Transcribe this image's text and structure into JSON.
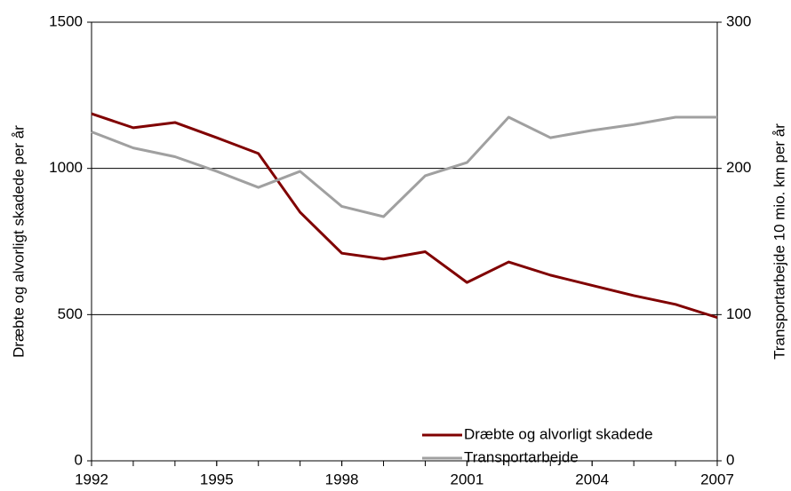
{
  "chart_data": {
    "type": "line",
    "x": [
      1992,
      1993,
      1994,
      1995,
      1996,
      1997,
      1998,
      1999,
      2000,
      2001,
      2002,
      2003,
      2004,
      2005,
      2006,
      2007
    ],
    "xlim": [
      1992,
      2007
    ],
    "xticks": [
      1992,
      1995,
      1998,
      2001,
      2004,
      2007
    ],
    "ylim": [
      0,
      1500
    ],
    "yticks": [
      0,
      500,
      1000,
      1500
    ],
    "y2lim": [
      0,
      300
    ],
    "y2ticks": [
      0,
      100,
      200,
      300
    ],
    "ylabel": "Dræbte og alvorligt skadede per år",
    "y2label": "Transportarbejde 10 mio. km per år",
    "grid": true,
    "legend": "lower right",
    "series": [
      {
        "name": "Dræbte og alvorligt skadede",
        "color": "#800000",
        "values": [
          1187,
          1139,
          1157,
          1105,
          1051,
          850,
          710,
          690,
          715,
          610,
          680,
          635,
          600,
          565,
          535,
          490
        ]
      },
      {
        "name": "Transportarbejde",
        "color": "#a0a0a0",
        "axis": "y2",
        "values": [
          225,
          214,
          208,
          198,
          187,
          198,
          174,
          167,
          195,
          204,
          235,
          221,
          226,
          230,
          235,
          235
        ]
      }
    ]
  }
}
